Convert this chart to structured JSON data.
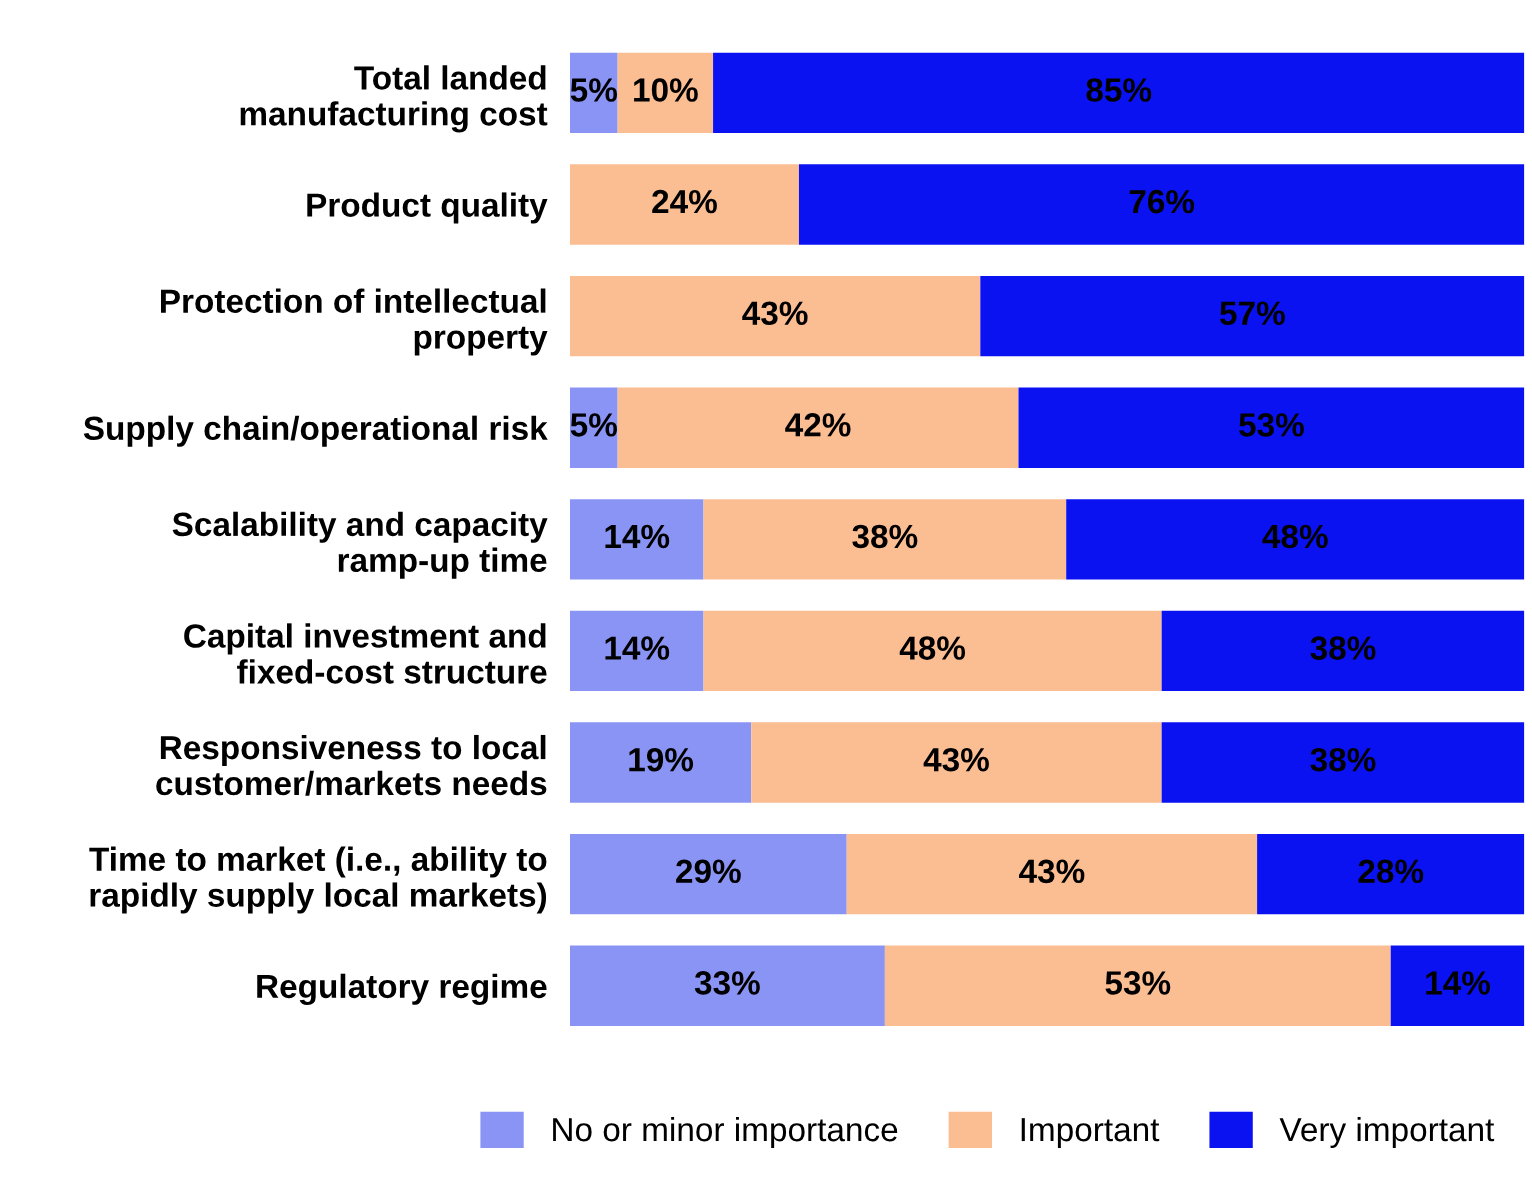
{
  "chart_data": {
    "type": "bar",
    "orientation": "horizontal",
    "stacked": true,
    "legend": "bottom",
    "grid": false,
    "categories": [
      "Total landed\nmanufacturing cost",
      "Product quality",
      "Protection of intellectual\nproperty",
      "Supply chain/operational risk",
      "Scalability and capacity\nramp-up time",
      "Capital investment and\nfixed-cost structure",
      "Responsiveness to local\ncustomer/markets needs",
      "Time to market (i.e., ability to\nrapidly supply local markets)",
      "Regulatory regime"
    ],
    "series": [
      {
        "name": "No or minor importance",
        "color": "#8a94f4",
        "values": [
          5,
          null,
          null,
          5,
          14,
          14,
          19,
          29,
          33
        ],
        "value_labels": [
          "5%",
          null,
          null,
          "5%",
          "14%",
          "14%",
          "19%",
          "29%",
          "33%"
        ]
      },
      {
        "name": "Important",
        "color": "#fbbd92",
        "values": [
          10,
          24,
          43,
          42,
          38,
          48,
          43,
          43,
          53
        ],
        "value_labels": [
          "10%",
          "24%",
          "43%",
          "42%",
          "38%",
          "48%",
          "43%",
          "43%",
          "53%"
        ]
      },
      {
        "name": "Very important",
        "color": "#0b12f2",
        "values": [
          85,
          76,
          57,
          53,
          48,
          38,
          38,
          28,
          14
        ],
        "value_labels": [
          "85%",
          "76%",
          "57%",
          "53%",
          "48%",
          "38%",
          "38%",
          "28%",
          "14%"
        ]
      }
    ]
  }
}
